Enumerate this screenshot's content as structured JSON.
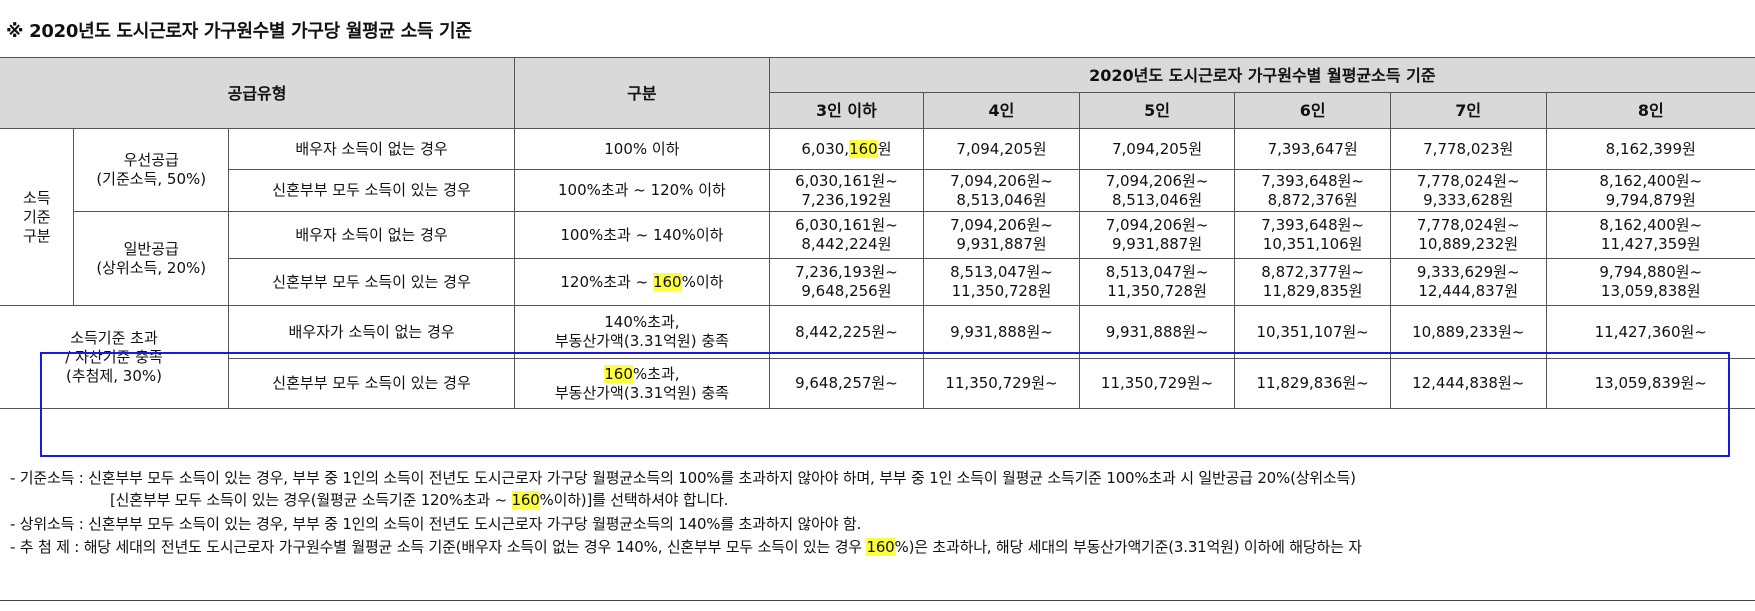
{
  "title": "※ 2020년도 도시근로자 가구원수별 가구당 월평균 소득 기준",
  "highlight_color": "#ffff40",
  "box_color": "#1a1adf",
  "header": {
    "supply_type": "공급유형",
    "category": "구분",
    "group": "2020년도 도시근로자 가구원수별 월평균소득 기준",
    "columns": [
      "3인 이하",
      "4인",
      "5인",
      "6인",
      "7인",
      "8인"
    ]
  },
  "income_block": {
    "label_lines": [
      "소득",
      "기준",
      "구분"
    ],
    "priority": {
      "name": "우선공급",
      "detail": "(기준소득, 50%)",
      "rows": [
        {
          "case": "배우자 소득이 없는 경우",
          "range": [
            "100% 이하"
          ],
          "values": [
            [
              "6,030,160원"
            ],
            [
              "7,094,205원"
            ],
            [
              "7,094,205원"
            ],
            [
              "7,393,647원"
            ],
            [
              "7,778,023원"
            ],
            [
              "8,162,399원"
            ]
          ]
        },
        {
          "case": "신혼부부 모두 소득이 있는 경우",
          "range": [
            "100%초과 ~ 120% 이하"
          ],
          "values": [
            [
              "6,030,161원~",
              "7,236,192원"
            ],
            [
              "7,094,206원~",
              "8,513,046원"
            ],
            [
              "7,094,206원~",
              "8,513,046원"
            ],
            [
              "7,393,648원~",
              "8,872,376원"
            ],
            [
              "7,778,024원~",
              "9,333,628원"
            ],
            [
              "8,162,400원~",
              "9,794,879원"
            ]
          ]
        }
      ]
    },
    "general": {
      "name": "일반공급",
      "detail": "(상위소득, 20%)",
      "rows": [
        {
          "case": "배우자 소득이 없는 경우",
          "range": [
            "100%초과 ~ 140%이하"
          ],
          "values": [
            [
              "6,030,161원~",
              "8,442,224원"
            ],
            [
              "7,094,206원~",
              "9,931,887원"
            ],
            [
              "7,094,206원~",
              "9,931,887원"
            ],
            [
              "7,393,648원~",
              "10,351,106원"
            ],
            [
              "7,778,024원~",
              "10,889,232원"
            ],
            [
              "8,162,400원~",
              "11,427,359원"
            ]
          ]
        },
        {
          "case": "신혼부부 모두 소득이 있는 경우",
          "range": [
            "120%초과 ~ 160%이하"
          ],
          "values": [
            [
              "7,236,193원~",
              "9,648,256원"
            ],
            [
              "8,513,047원~",
              "11,350,728원"
            ],
            [
              "8,513,047원~",
              "11,350,728원"
            ],
            [
              "8,872,377원~",
              "11,829,835원"
            ],
            [
              "9,333,629원~",
              "12,444,837원"
            ],
            [
              "9,794,880원~",
              "13,059,838원"
            ]
          ]
        }
      ]
    }
  },
  "lottery_block": {
    "label_lines": [
      "소득기준 초과",
      "/ 자산기준 충족",
      "(추첨제, 30%)"
    ],
    "rows": [
      {
        "case": "배우자가 소득이 없는 경우",
        "range": [
          "140%초과,",
          "부동산가액(3.31억원) 충족"
        ],
        "values": [
          [
            "8,442,225원~"
          ],
          [
            "9,931,888원~"
          ],
          [
            "9,931,888원~"
          ],
          [
            "10,351,107원~"
          ],
          [
            "10,889,233원~"
          ],
          [
            "11,427,360원~"
          ]
        ]
      },
      {
        "case": "신혼부부 모두 소득이 있는 경우",
        "range": [
          "160%초과,",
          "부동산가액(3.31억원) 충족"
        ],
        "values": [
          [
            "9,648,257원~"
          ],
          [
            "11,350,729원~"
          ],
          [
            "11,350,729원~"
          ],
          [
            "11,829,836원~"
          ],
          [
            "12,444,838원~"
          ],
          [
            "13,059,839원~"
          ]
        ]
      }
    ]
  },
  "highlighted_token": "160",
  "notes": [
    "- 기준소득 : 신혼부부 모두 소득이 있는 경우, 부부 중 1인의 소득이 전년도 도시근로자 가구당 월평균소득의 100%를 초과하지 않아야 하며, 부부 중 1인 소득이 월평균 소득기준 100%초과 시 일반공급 20%(상위소득)",
    "[신혼부부 모두 소득이 있는 경우(월평균 소득기준 120%초과 ~ 160%이하)]를 선택하셔야 합니다.",
    "- 상위소득 : 신혼부부 모두 소득이 있는 경우, 부부 중 1인의 소득이 전년도 도시근로자 가구당 월평균소득의 140%를 초과하지 않아야 함.",
    "- 추 첨 제 : 해당 세대의 전년도 도시근로자 가구원수별 월평균 소득 기준(배우자 소득이 없는 경우 140%, 신혼부부 모두 소득이 있는 경우 160%)은 초과하나, 해당 세대의 부동산가액기준(3.31억원) 이하에 해당하는 자"
  ]
}
